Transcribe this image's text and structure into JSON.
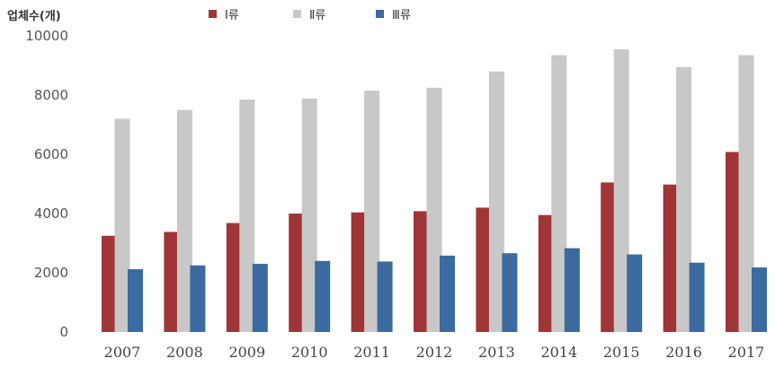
{
  "chart_data": {
    "type": "bar",
    "ylabel": "업체수(개)",
    "xlabel": "",
    "ylim": [
      0,
      10000
    ],
    "yticks": [
      0,
      2000,
      4000,
      6000,
      8000,
      10000
    ],
    "grid": false,
    "legend_position": "top",
    "categories": [
      "2007",
      "2008",
      "2009",
      "2010",
      "2011",
      "2012",
      "2013",
      "2014",
      "2015",
      "2016",
      "2017"
    ],
    "series": [
      {
        "name": "Ⅰ류",
        "color": "#a03538",
        "values": [
          3250,
          3380,
          3680,
          4000,
          4040,
          4080,
          4200,
          3950,
          5050,
          4980,
          6080
        ]
      },
      {
        "name": "Ⅱ류",
        "color": "#c8c8c8",
        "values": [
          7200,
          7500,
          7850,
          7880,
          8150,
          8250,
          8800,
          9350,
          9550,
          8950,
          9350
        ]
      },
      {
        "name": "Ⅲ류",
        "color": "#3b6aa0",
        "values": [
          2120,
          2250,
          2300,
          2400,
          2380,
          2580,
          2660,
          2830,
          2620,
          2340,
          2180
        ]
      }
    ]
  }
}
